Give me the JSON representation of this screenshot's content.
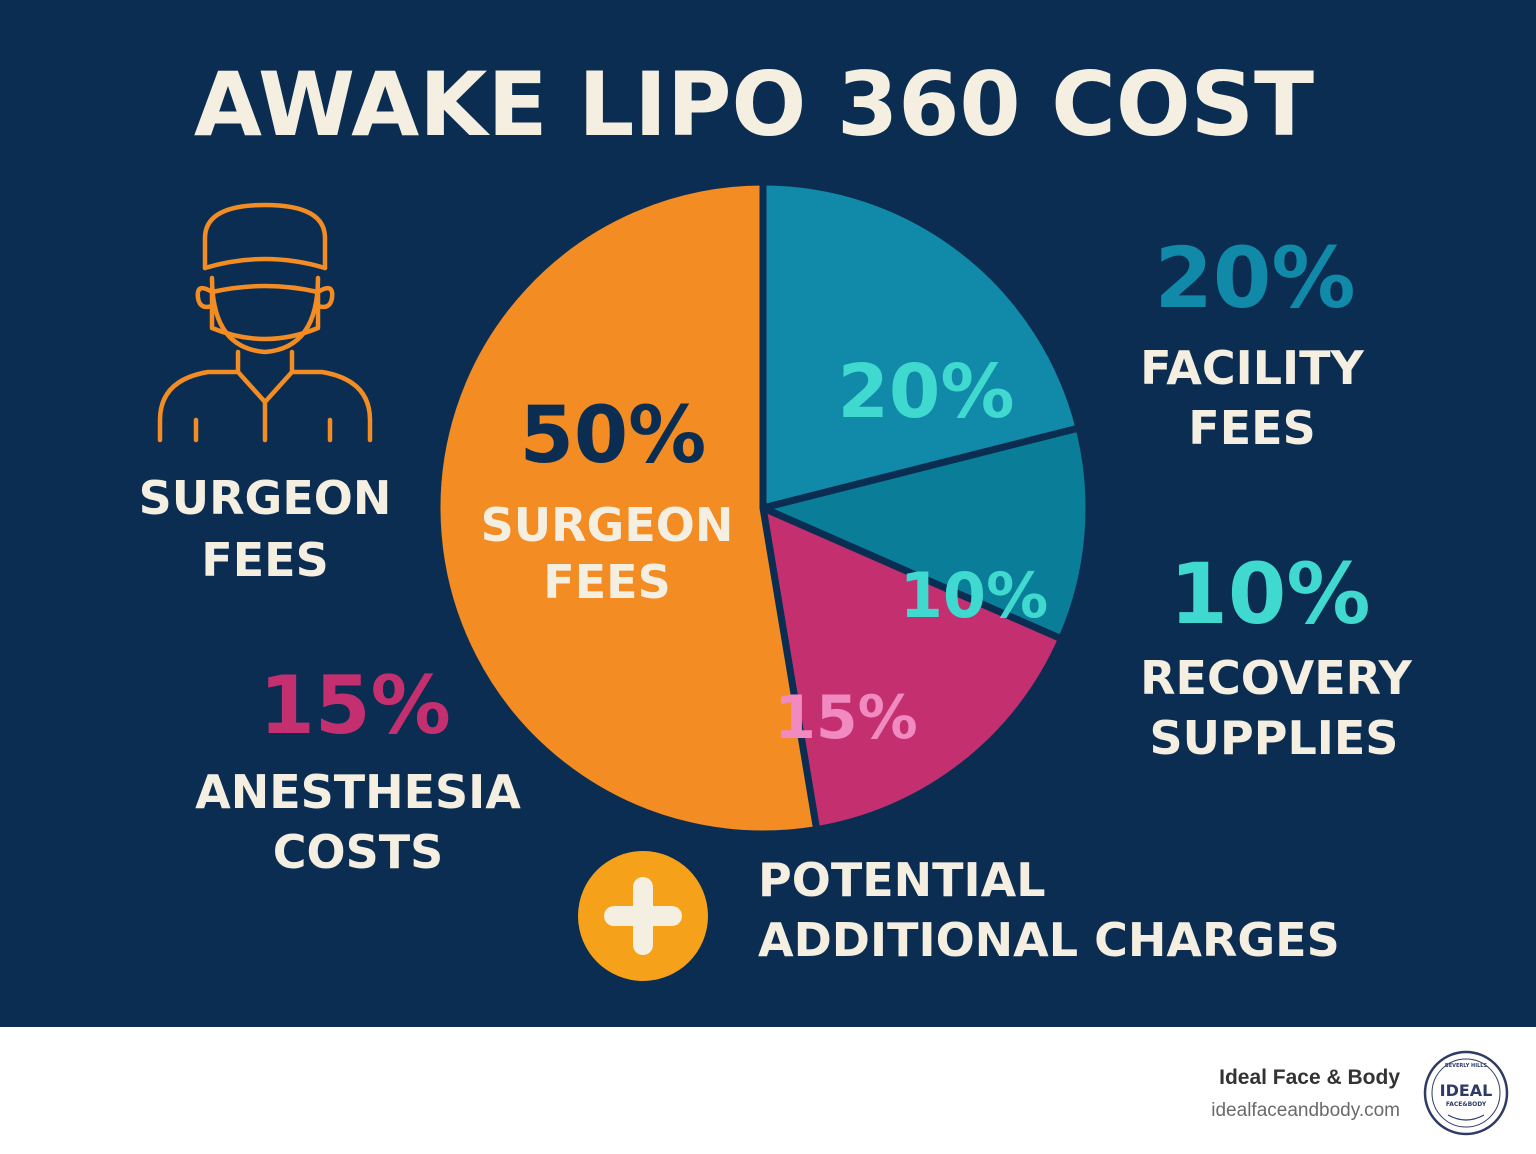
{
  "colors": {
    "background": "#0b2d52",
    "cream": "#f5efe1",
    "orange": "#f28c23",
    "teal": "#1189a8",
    "teal_dark": "#0a7d99",
    "magenta": "#c4306f",
    "aqua": "#3fd9cf",
    "pink_light": "#f08ac0",
    "navy_text": "#0b2d52",
    "plus_circle": "#f5a21a"
  },
  "chart_data": {
    "type": "pie",
    "title": "AWAKE LIPO 360 COST",
    "slices": [
      {
        "label": "SURGEON FEES",
        "value": 50,
        "percent_label": "50%",
        "color": "#f28c23",
        "label_color": "#0b2d52"
      },
      {
        "label": "FACILITY FEES",
        "value": 20,
        "percent_label": "20%",
        "color": "#1189a8",
        "label_color": "#3fd9cf"
      },
      {
        "label": "RECOVERY SUPPLIES",
        "value": 10,
        "percent_label": "10%",
        "color": "#0a7d99",
        "label_color": "#3fd9cf"
      },
      {
        "label": "ANESTHESIA COSTS",
        "value": 15,
        "percent_label": "15%",
        "color": "#c4306f",
        "label_color": "#f08ac0"
      }
    ],
    "inner_label_lines": [
      "SURGEON",
      "FEES"
    ],
    "callouts": {
      "surgeon": [
        "SURGEON",
        "FEES"
      ],
      "facility": {
        "percent": "20%",
        "lines": [
          "FACILITY",
          "FEES"
        ]
      },
      "recovery": {
        "percent": "10%",
        "lines": [
          "RECOVERY",
          "SUPPLIES"
        ]
      },
      "anesthesia": {
        "percent": "15%",
        "lines": [
          "ANESTHESIA",
          "COSTS"
        ]
      },
      "additional": [
        "POTENTIAL",
        "ADDITIONAL CHARGES"
      ]
    }
  },
  "icons": {
    "surgeon": "surgeon-icon",
    "plus": "plus-icon"
  },
  "footer": {
    "brand_name": "Ideal Face & Body",
    "brand_url": "idealfaceandbody.com",
    "logo_text": "IDEAL",
    "logo_subtext": "FACE&BODY",
    "logo_ring_text": "BEVERLY HILLS"
  }
}
